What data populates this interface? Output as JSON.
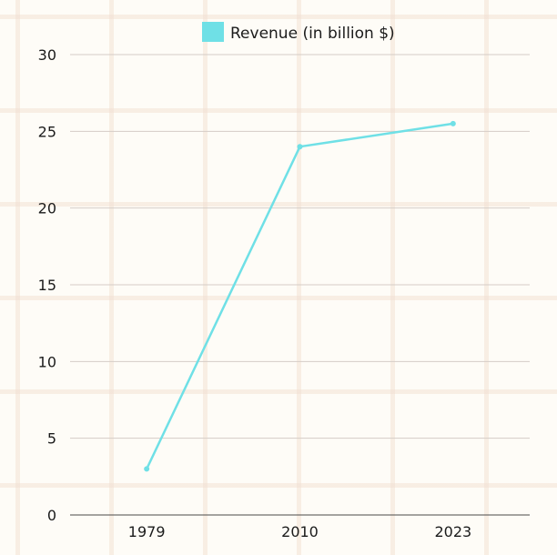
{
  "chart_data": {
    "type": "line",
    "title": "",
    "xlabel": "",
    "ylabel": "",
    "categories": [
      "1979",
      "2010",
      "2023"
    ],
    "series": [
      {
        "name": "Revenue (in billion $)",
        "values": [
          3,
          24,
          25.5
        ],
        "color": "#6fe0e6"
      }
    ],
    "ylim": [
      0,
      30
    ],
    "yticks": [
      0,
      5,
      10,
      15,
      20,
      25,
      30
    ],
    "grid": true,
    "legend_position": "top-center"
  }
}
